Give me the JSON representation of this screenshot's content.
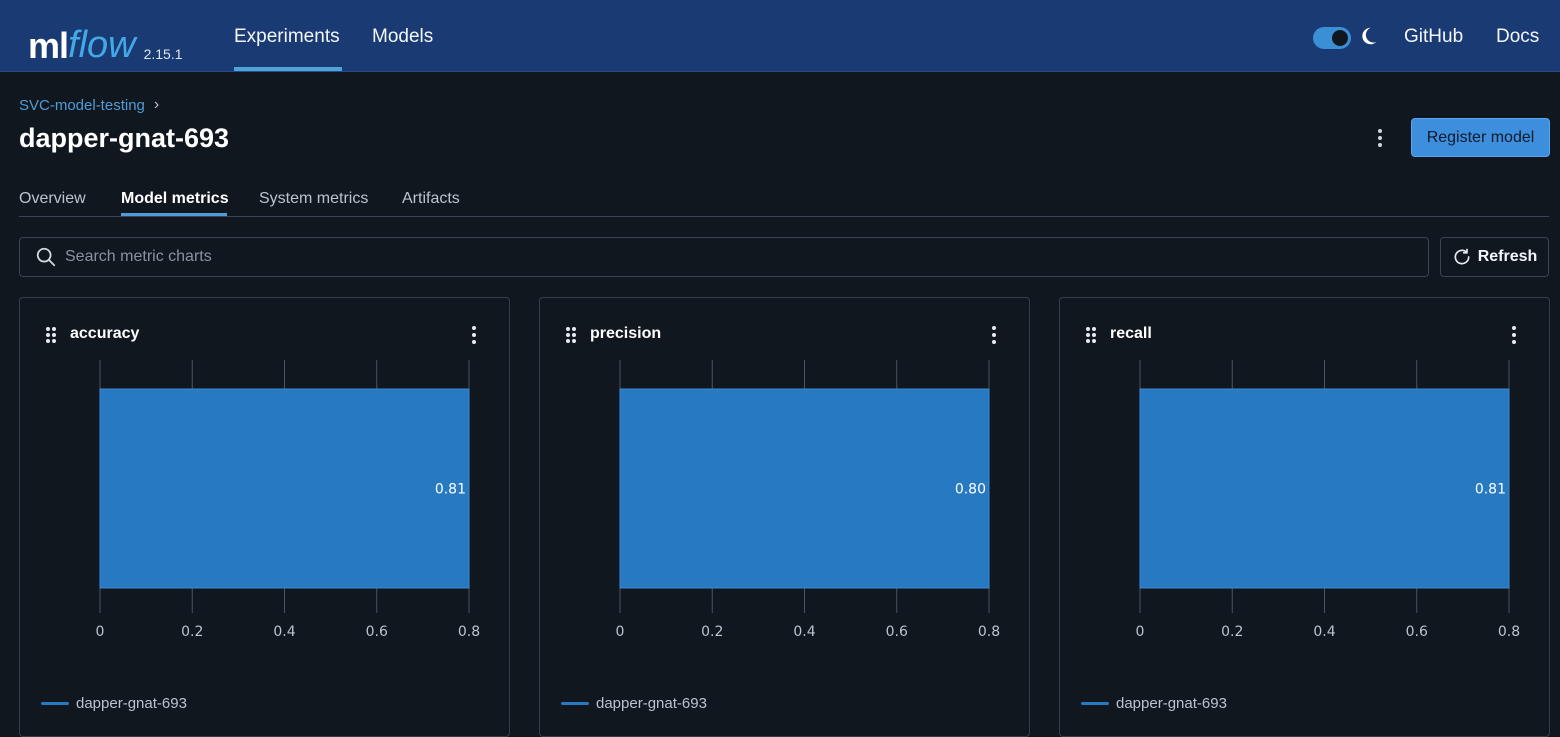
{
  "nav": {
    "logo_ml": "ml",
    "logo_flow": "flow",
    "version": "2.15.1",
    "links": [
      "Experiments",
      "Models"
    ],
    "right_links": [
      "GitHub",
      "Docs"
    ]
  },
  "header": {
    "breadcrumb": "SVC-model-testing",
    "title": "dapper-gnat-693",
    "register_button": "Register model"
  },
  "tabs": [
    "Overview",
    "Model metrics",
    "System metrics",
    "Artifacts"
  ],
  "active_tab": "Model metrics",
  "search": {
    "placeholder": "Search metric charts",
    "value": ""
  },
  "refresh_label": "Refresh",
  "colors": {
    "nav_bg": "#1a3a73",
    "accent": "#4f9cd7",
    "bar": "#2779c2",
    "page_bg": "#11171f"
  },
  "cards": [
    {
      "title": "accuracy",
      "legend": "dapper-gnat-693"
    },
    {
      "title": "precision",
      "legend": "dapper-gnat-693"
    },
    {
      "title": "recall",
      "legend": "dapper-gnat-693"
    }
  ],
  "chart_data": [
    {
      "type": "bar",
      "orientation": "horizontal",
      "title": "accuracy",
      "categories": [
        "dapper-gnat-693"
      ],
      "values": [
        0.81
      ],
      "data_labels": [
        "0.81"
      ],
      "xticks": [
        "0",
        "0.2",
        "0.4",
        "0.6",
        "0.8"
      ],
      "xlim": [
        0,
        0.8
      ],
      "grid": true,
      "legend": "bottom-left"
    },
    {
      "type": "bar",
      "orientation": "horizontal",
      "title": "precision",
      "categories": [
        "dapper-gnat-693"
      ],
      "values": [
        0.8
      ],
      "data_labels": [
        "0.80"
      ],
      "xticks": [
        "0",
        "0.2",
        "0.4",
        "0.6",
        "0.8"
      ],
      "xlim": [
        0,
        0.8
      ],
      "grid": true,
      "legend": "bottom-left"
    },
    {
      "type": "bar",
      "orientation": "horizontal",
      "title": "recall",
      "categories": [
        "dapper-gnat-693"
      ],
      "values": [
        0.81
      ],
      "data_labels": [
        "0.81"
      ],
      "xticks": [
        "0",
        "0.2",
        "0.4",
        "0.6",
        "0.8"
      ],
      "xlim": [
        0,
        0.8
      ],
      "grid": true,
      "legend": "bottom-left"
    }
  ]
}
